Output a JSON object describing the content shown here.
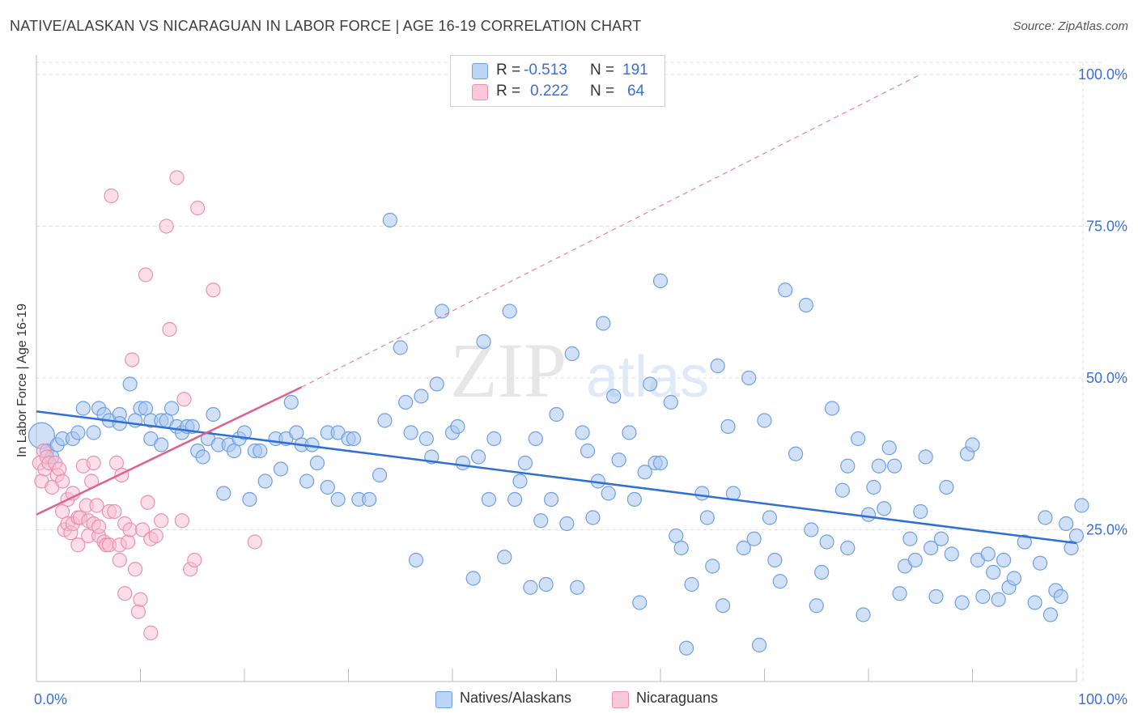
{
  "title": "NATIVE/ALASKAN VS NICARAGUAN IN LABOR FORCE | AGE 16-19 CORRELATION CHART",
  "source": "Source: ZipAtlas.com",
  "watermark": {
    "zip": "ZIP",
    "atlas": "atlas"
  },
  "colors": {
    "blue_fill": "#a9c7f0",
    "blue_stroke": "#6f9fe0",
    "blue_line": "#2f6fd6",
    "pink_fill": "#f7bdd0",
    "pink_stroke": "#ec8fb0",
    "pink_line": "#e0608e",
    "grid": "#dddddd",
    "axis_text": "#3a6fd8"
  },
  "legend": {
    "rows": [
      {
        "r_label": "R =",
        "r_value": "-0.513",
        "n_label": "N =",
        "n_value": "191"
      },
      {
        "r_label": "R =",
        "r_value": "0.222",
        "n_label": "N =",
        "n_value": "64"
      }
    ]
  },
  "bottom_legend": {
    "series1": "Natives/Alaskans",
    "series2": "Nicaraguans"
  },
  "chart_data": {
    "type": "scatter",
    "title": "NATIVE/ALASKAN VS NICARAGUAN IN LABOR FORCE | AGE 16-19 CORRELATION CHART",
    "xlabel": "",
    "ylabel": "In Labor Force | Age 16-19",
    "xlim": [
      0,
      100
    ],
    "ylim": [
      0,
      102
    ],
    "x_tick_labels": {
      "left": "0.0%",
      "right": "100.0%"
    },
    "y_ticks": [
      {
        "value": 25,
        "label": "25.0%"
      },
      {
        "value": 50,
        "label": "50.0%"
      },
      {
        "value": 75,
        "label": "75.0%"
      },
      {
        "value": 100,
        "label": "100.0%"
      }
    ],
    "series": [
      {
        "name": "Natives/Alaskans",
        "R": -0.513,
        "N": 191,
        "trend": {
          "x": [
            0,
            100
          ],
          "y": [
            44.5,
            22.8
          ],
          "style": "solid"
        },
        "points": [
          [
            0.5,
            40.5
          ],
          [
            1,
            38
          ],
          [
            1.5,
            37
          ],
          [
            2,
            39
          ],
          [
            2.5,
            40
          ],
          [
            3.5,
            40
          ],
          [
            4,
            41
          ],
          [
            4.5,
            45
          ],
          [
            5.5,
            41
          ],
          [
            6,
            45
          ],
          [
            6.5,
            44
          ],
          [
            7,
            43
          ],
          [
            8,
            44
          ],
          [
            8,
            42.5
          ],
          [
            9,
            49
          ],
          [
            9.5,
            43
          ],
          [
            10,
            45
          ],
          [
            10.5,
            45
          ],
          [
            11,
            43
          ],
          [
            11,
            40
          ],
          [
            12,
            43
          ],
          [
            12,
            39
          ],
          [
            12.5,
            43
          ],
          [
            13,
            45
          ],
          [
            13.5,
            42
          ],
          [
            14,
            41
          ],
          [
            14.5,
            42
          ],
          [
            15,
            42
          ],
          [
            15.5,
            38
          ],
          [
            16,
            37
          ],
          [
            16.5,
            40
          ],
          [
            17,
            44
          ],
          [
            17.5,
            39
          ],
          [
            18,
            31
          ],
          [
            18.5,
            39
          ],
          [
            19,
            38
          ],
          [
            19.5,
            40
          ],
          [
            20,
            41
          ],
          [
            20.5,
            30
          ],
          [
            21,
            38
          ],
          [
            21.5,
            38
          ],
          [
            22,
            33
          ],
          [
            23,
            40
          ],
          [
            23.5,
            35
          ],
          [
            24,
            40
          ],
          [
            24.5,
            46
          ],
          [
            25,
            41
          ],
          [
            25.5,
            39
          ],
          [
            26,
            33
          ],
          [
            26.5,
            39
          ],
          [
            27,
            36
          ],
          [
            28,
            32
          ],
          [
            28,
            41
          ],
          [
            29,
            41
          ],
          [
            29,
            30
          ],
          [
            30,
            40
          ],
          [
            30.5,
            40
          ],
          [
            31,
            30
          ],
          [
            32,
            30
          ],
          [
            33,
            34
          ],
          [
            33.5,
            43
          ],
          [
            34,
            76
          ],
          [
            35,
            55
          ],
          [
            35.5,
            46
          ],
          [
            36,
            41
          ],
          [
            36.5,
            20
          ],
          [
            37,
            47
          ],
          [
            37.5,
            40
          ],
          [
            38,
            37
          ],
          [
            38.5,
            49
          ],
          [
            39,
            61
          ],
          [
            40,
            41
          ],
          [
            40.5,
            42
          ],
          [
            41,
            36
          ],
          [
            42,
            17
          ],
          [
            42.5,
            37
          ],
          [
            43,
            56
          ],
          [
            43.5,
            30
          ],
          [
            44,
            40
          ],
          [
            45,
            20.5
          ],
          [
            45.5,
            61
          ],
          [
            46,
            30
          ],
          [
            46.5,
            33
          ],
          [
            47,
            36
          ],
          [
            47.5,
            15.5
          ],
          [
            48,
            40
          ],
          [
            48.5,
            26.5
          ],
          [
            49,
            16
          ],
          [
            49.5,
            30
          ],
          [
            50,
            44
          ],
          [
            51,
            26
          ],
          [
            51.5,
            54
          ],
          [
            52,
            15.5
          ],
          [
            52.5,
            41
          ],
          [
            53,
            38
          ],
          [
            53.5,
            27
          ],
          [
            54,
            33
          ],
          [
            54.5,
            59
          ],
          [
            55,
            31
          ],
          [
            55.5,
            47
          ],
          [
            56,
            36.5
          ],
          [
            57,
            41
          ],
          [
            57.5,
            30
          ],
          [
            58,
            13
          ],
          [
            58.5,
            34.5
          ],
          [
            59,
            49
          ],
          [
            59.5,
            36
          ],
          [
            60,
            36
          ],
          [
            60,
            66
          ],
          [
            61,
            46
          ],
          [
            61.5,
            24
          ],
          [
            62,
            22
          ],
          [
            62.5,
            5.5
          ],
          [
            63,
            16
          ],
          [
            64,
            31
          ],
          [
            64.5,
            27
          ],
          [
            65,
            19
          ],
          [
            65.5,
            52
          ],
          [
            66,
            12.5
          ],
          [
            66.5,
            42
          ],
          [
            67,
            31
          ],
          [
            68,
            22
          ],
          [
            68.5,
            50
          ],
          [
            69,
            23.5
          ],
          [
            69.5,
            6
          ],
          [
            70,
            43
          ],
          [
            70.5,
            27
          ],
          [
            71,
            20
          ],
          [
            71.5,
            16.5
          ],
          [
            72,
            64.5
          ],
          [
            73,
            37.5
          ],
          [
            74,
            62
          ],
          [
            74.5,
            25
          ],
          [
            75,
            12.5
          ],
          [
            75.5,
            18
          ],
          [
            76,
            23
          ],
          [
            76.5,
            45
          ],
          [
            77.5,
            31.5
          ],
          [
            78,
            35.5
          ],
          [
            78,
            22
          ],
          [
            79,
            40
          ],
          [
            79.5,
            11
          ],
          [
            80,
            27.5
          ],
          [
            80.5,
            32
          ],
          [
            81,
            35.5
          ],
          [
            81.5,
            28.5
          ],
          [
            82,
            38.5
          ],
          [
            82.5,
            35.5
          ],
          [
            83,
            14.5
          ],
          [
            83.5,
            19
          ],
          [
            84,
            23.5
          ],
          [
            84.5,
            20
          ],
          [
            85,
            28
          ],
          [
            85.5,
            37
          ],
          [
            86,
            22
          ],
          [
            86.5,
            14
          ],
          [
            87,
            23.5
          ],
          [
            87.5,
            32
          ],
          [
            88,
            21
          ],
          [
            89,
            13
          ],
          [
            89.5,
            37.5
          ],
          [
            90,
            39
          ],
          [
            90.5,
            20
          ],
          [
            91,
            14
          ],
          [
            91.5,
            21
          ],
          [
            92,
            18
          ],
          [
            92.5,
            13.5
          ],
          [
            93,
            20
          ],
          [
            93.5,
            15.5
          ],
          [
            94,
            17
          ],
          [
            95,
            23
          ],
          [
            96,
            13
          ],
          [
            96.5,
            19.5
          ],
          [
            97,
            27
          ],
          [
            97.5,
            11
          ],
          [
            98,
            15
          ],
          [
            98.5,
            14
          ],
          [
            99,
            26
          ],
          [
            99.5,
            22
          ],
          [
            100,
            24
          ],
          [
            100.5,
            29
          ]
        ]
      },
      {
        "name": "Nicaraguans",
        "R": 0.222,
        "N": 64,
        "trend": {
          "x": [
            0,
            25.5
          ],
          "y": [
            27.5,
            48.5
          ],
          "style": "solid",
          "extension": {
            "x": [
              25.5,
              85
            ],
            "y": [
              48.5,
              100
            ],
            "style": "dashed"
          }
        },
        "points": [
          [
            0.3,
            36
          ],
          [
            0.5,
            33
          ],
          [
            0.7,
            38
          ],
          [
            0.8,
            35
          ],
          [
            1,
            37
          ],
          [
            1.2,
            36
          ],
          [
            1.5,
            32
          ],
          [
            1.8,
            36
          ],
          [
            2,
            34
          ],
          [
            2.2,
            35
          ],
          [
            2.5,
            28
          ],
          [
            2.5,
            33
          ],
          [
            2.7,
            25
          ],
          [
            3,
            30
          ],
          [
            3,
            26
          ],
          [
            3.3,
            24.5
          ],
          [
            3.5,
            31
          ],
          [
            3.5,
            26
          ],
          [
            4,
            22.5
          ],
          [
            4,
            27
          ],
          [
            4.2,
            27
          ],
          [
            4.5,
            35.5
          ],
          [
            4.8,
            29
          ],
          [
            5,
            26.5
          ],
          [
            5,
            24
          ],
          [
            5.3,
            33
          ],
          [
            5.5,
            26
          ],
          [
            5.5,
            36
          ],
          [
            5.8,
            29
          ],
          [
            6,
            24
          ],
          [
            6,
            25.5
          ],
          [
            6.5,
            23
          ],
          [
            6.7,
            22.5
          ],
          [
            7,
            22.5
          ],
          [
            7,
            28
          ],
          [
            7.2,
            80
          ],
          [
            7.5,
            28
          ],
          [
            7.7,
            36
          ],
          [
            8,
            22.5
          ],
          [
            8,
            20
          ],
          [
            8.2,
            34
          ],
          [
            8.5,
            26
          ],
          [
            8.5,
            14.5
          ],
          [
            8.8,
            23
          ],
          [
            9,
            25
          ],
          [
            9.2,
            53
          ],
          [
            9.5,
            18.5
          ],
          [
            9.8,
            11.5
          ],
          [
            10,
            13.5
          ],
          [
            10.2,
            25
          ],
          [
            10.5,
            67
          ],
          [
            10.7,
            29.5
          ],
          [
            11,
            8
          ],
          [
            11,
            23.5
          ],
          [
            11.5,
            24
          ],
          [
            12,
            26.5
          ],
          [
            12.5,
            75
          ],
          [
            12.8,
            58
          ],
          [
            13.5,
            83
          ],
          [
            14,
            26.5
          ],
          [
            14.2,
            46.5
          ],
          [
            14.8,
            18.5
          ],
          [
            15.2,
            20
          ],
          [
            15.5,
            78
          ],
          [
            17,
            64.5
          ],
          [
            21,
            23
          ]
        ]
      }
    ]
  }
}
